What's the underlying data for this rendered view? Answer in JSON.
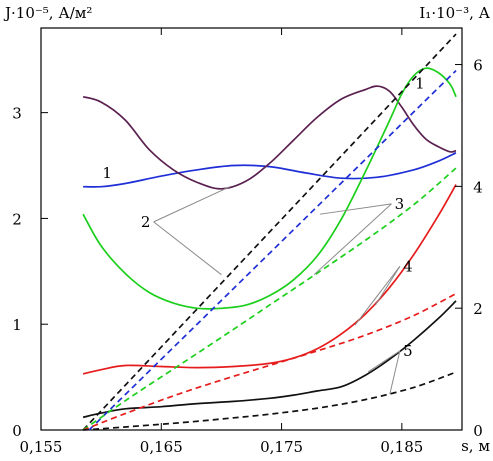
{
  "chart_data": {
    "type": "line",
    "title": "",
    "xlabel": "s, м",
    "ylabel_left": "J·10⁻⁵, А/м²",
    "ylabel_right": "I₁·10⁻³, А",
    "xlim": [
      0.155,
      0.19
    ],
    "ylim_left": [
      0,
      3.8
    ],
    "ylim_right": [
      0,
      6.6
    ],
    "x_ticks": [
      0.155,
      0.165,
      0.175,
      0.185
    ],
    "x_tick_labels": [
      "0,155",
      "0,165",
      "0,175",
      "0,185"
    ],
    "y_left_ticks": [
      0,
      1,
      2,
      3
    ],
    "y_left_tick_labels": [
      "0",
      "1",
      "2",
      "3"
    ],
    "y_right_ticks": [
      0,
      2,
      4,
      6
    ],
    "y_right_tick_labels": [
      "0",
      "2",
      "4",
      "6"
    ],
    "grid": false,
    "legend": "none",
    "series": [
      {
        "name": "1",
        "axis": "left",
        "style": "solid",
        "color": "#1f2fd6",
        "x": [
          0.1585,
          0.16,
          0.162,
          0.165,
          0.168,
          0.171,
          0.174,
          0.177,
          0.18,
          0.183,
          0.186,
          0.188,
          0.1895
        ],
        "y": [
          2.3,
          2.3,
          2.33,
          2.4,
          2.46,
          2.5,
          2.49,
          2.43,
          2.38,
          2.39,
          2.46,
          2.54,
          2.62
        ]
      },
      {
        "name": "2",
        "axis": "left",
        "style": "solid",
        "color": "#5a2050",
        "x": [
          0.1585,
          0.16,
          0.162,
          0.164,
          0.166,
          0.168,
          0.17,
          0.172,
          0.174,
          0.176,
          0.178,
          0.18,
          0.182,
          0.183,
          0.184,
          0.185,
          0.186,
          0.187,
          0.188,
          0.189,
          0.1895
        ],
        "y": [
          3.15,
          3.1,
          2.93,
          2.65,
          2.46,
          2.34,
          2.28,
          2.35,
          2.52,
          2.74,
          2.96,
          3.13,
          3.22,
          3.25,
          3.2,
          3.05,
          2.88,
          2.75,
          2.68,
          2.63,
          2.64
        ]
      },
      {
        "name": "3",
        "axis": "left",
        "style": "solid",
        "color": "#1ccf1c",
        "x": [
          0.1585,
          0.16,
          0.162,
          0.164,
          0.166,
          0.168,
          0.17,
          0.172,
          0.174,
          0.176,
          0.178,
          0.18,
          0.182,
          0.184,
          0.185,
          0.186,
          0.187,
          0.188,
          0.189,
          0.1895
        ],
        "y": [
          2.04,
          1.74,
          1.48,
          1.3,
          1.2,
          1.15,
          1.15,
          1.18,
          1.27,
          1.42,
          1.65,
          2.0,
          2.45,
          2.93,
          3.18,
          3.35,
          3.42,
          3.38,
          3.27,
          3.15
        ]
      },
      {
        "name": "4",
        "axis": "left",
        "style": "solid",
        "color": "#e61c1c",
        "x": [
          0.1585,
          0.16,
          0.162,
          0.165,
          0.168,
          0.171,
          0.174,
          0.176,
          0.178,
          0.18,
          0.182,
          0.184,
          0.186,
          0.188,
          0.1895
        ],
        "y": [
          0.53,
          0.57,
          0.61,
          0.6,
          0.59,
          0.6,
          0.63,
          0.68,
          0.77,
          0.91,
          1.1,
          1.35,
          1.66,
          2.02,
          2.32
        ]
      },
      {
        "name": "5",
        "axis": "left",
        "style": "solid",
        "color": "#111111",
        "x": [
          0.1585,
          0.16,
          0.162,
          0.165,
          0.168,
          0.171,
          0.174,
          0.176,
          0.178,
          0.18,
          0.182,
          0.184,
          0.186,
          0.188,
          0.1895
        ],
        "y": [
          0.12,
          0.16,
          0.2,
          0.22,
          0.25,
          0.27,
          0.3,
          0.33,
          0.37,
          0.41,
          0.52,
          0.67,
          0.85,
          1.05,
          1.22
        ]
      },
      {
        "name": "1",
        "axis": "right",
        "style": "dashed",
        "color": "#1f2fd6",
        "x": [
          0.159,
          0.1895
        ],
        "y": [
          0.0,
          5.9
        ]
      },
      {
        "name": "2",
        "axis": "right",
        "style": "dashed",
        "color": "#111111",
        "x": [
          0.1585,
          0.1895
        ],
        "y": [
          0.0,
          6.5
        ]
      },
      {
        "name": "3",
        "axis": "right",
        "style": "dashed",
        "color": "#1ccf1c",
        "x": [
          0.1585,
          0.162,
          0.166,
          0.17,
          0.174,
          0.178,
          0.182,
          0.186,
          0.1895
        ],
        "y": [
          0.0,
          0.48,
          1.0,
          1.52,
          2.05,
          2.58,
          3.12,
          3.7,
          4.3
        ]
      },
      {
        "name": "4",
        "axis": "right",
        "style": "dashed",
        "color": "#e61c1c",
        "x": [
          0.1585,
          0.162,
          0.166,
          0.17,
          0.174,
          0.178,
          0.182,
          0.186,
          0.1895
        ],
        "y": [
          0.0,
          0.27,
          0.56,
          0.82,
          1.06,
          1.3,
          1.56,
          1.88,
          2.24
        ]
      },
      {
        "name": "5",
        "axis": "right",
        "style": "dashed",
        "color": "#111111",
        "x": [
          0.1585,
          0.162,
          0.166,
          0.17,
          0.174,
          0.178,
          0.182,
          0.186,
          0.1895
        ],
        "y": [
          0.0,
          0.05,
          0.11,
          0.18,
          0.26,
          0.36,
          0.5,
          0.7,
          0.95
        ]
      }
    ],
    "annotations": [
      {
        "text": "1",
        "x": 0.1605,
        "y_left": 2.38,
        "leaders": []
      },
      {
        "text": "1",
        "x": 0.1865,
        "y_left": 3.23,
        "leaders": []
      },
      {
        "text": "2",
        "x": 0.1637,
        "y_left": 1.92,
        "leaders": [
          {
            "x": 0.1707,
            "y_left": 2.3,
            "axis": "left"
          },
          {
            "x": 0.17,
            "y_right": 2.55,
            "axis": "right"
          }
        ]
      },
      {
        "text": "3",
        "x": 0.1848,
        "y_left": 2.09,
        "leaders": [
          {
            "x": 0.1782,
            "y_left": 2.04,
            "axis": "left"
          },
          {
            "x": 0.1777,
            "y_right": 2.55,
            "axis": "right"
          }
        ]
      },
      {
        "text": "4",
        "x": 0.1855,
        "y_left": 1.5,
        "leaders": [
          {
            "x": 0.1828,
            "y_left": 1.18,
            "axis": "left"
          },
          {
            "x": 0.1811,
            "y_right": 1.72,
            "axis": "right"
          }
        ]
      },
      {
        "text": "5",
        "x": 0.1855,
        "y_left": 0.7,
        "leaders": [
          {
            "x": 0.1822,
            "y_left": 0.55,
            "axis": "left"
          },
          {
            "x": 0.184,
            "y_right": 0.59,
            "axis": "right"
          }
        ]
      }
    ]
  }
}
